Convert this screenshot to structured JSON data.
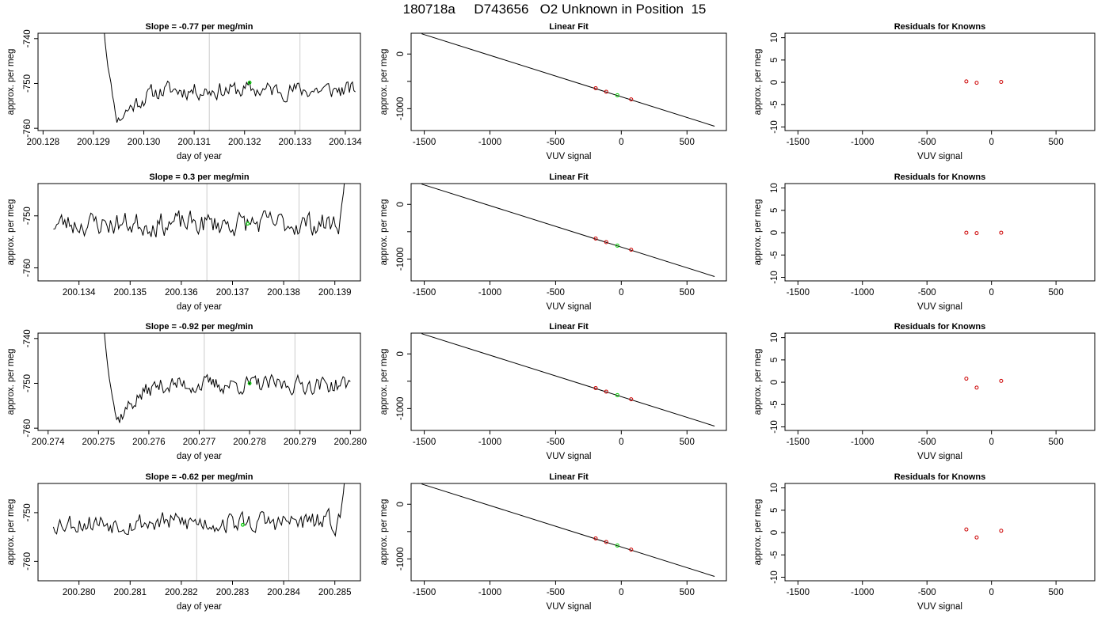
{
  "title": "180718a     D743656   O2 Unknown in Position  15",
  "chart_data": [
    {
      "type": "line",
      "title": "Slope =  -0.77  per meg/min",
      "xlabel": "day of year",
      "ylabel": "approx. per meg",
      "xlim": [
        200.1279,
        200.1343
      ],
      "ylim": [
        -760.5,
        -738.8
      ],
      "xticks": [
        {
          "v": 200.128,
          "label": "200.128"
        },
        {
          "v": 200.129,
          "label": "200.129"
        },
        {
          "v": 200.13,
          "label": "200.130"
        },
        {
          "v": 200.131,
          "label": "200.131"
        },
        {
          "v": 200.132,
          "label": "200.132"
        },
        {
          "v": 200.133,
          "label": "200.133"
        },
        {
          "v": 200.134,
          "label": "200.134"
        }
      ],
      "yticks": [
        {
          "v": -760,
          "label": "-760"
        },
        {
          "v": -750,
          "label": "-750"
        },
        {
          "v": -740,
          "label": "-740"
        }
      ],
      "vlines": [
        200.1313,
        200.1331
      ],
      "marker": {
        "x": 200.1321,
        "y": -749.8
      },
      "start": {
        "x": 200.1292,
        "y": -736
      },
      "range": [
        200.1292,
        200.1342
      ],
      "n": 170,
      "drop": {
        "len": 10,
        "to": -760
      },
      "base": -751.5,
      "rise": {
        "start": -758,
        "len": 35
      },
      "amp": 1.7,
      "seed": 11
    },
    {
      "type": "line",
      "title": "Slope =  0.3  per meg/min",
      "xlabel": "day of year",
      "ylabel": "approx. per meg",
      "xlim": [
        200.1332,
        200.1395
      ],
      "ylim": [
        -762.5,
        -743.8
      ],
      "xticks": [
        {
          "v": 200.134,
          "label": "200.134"
        },
        {
          "v": 200.135,
          "label": "200.135"
        },
        {
          "v": 200.136,
          "label": "200.136"
        },
        {
          "v": 200.137,
          "label": "200.137"
        },
        {
          "v": 200.138,
          "label": "200.138"
        },
        {
          "v": 200.139,
          "label": "200.139"
        }
      ],
      "yticks": [
        {
          "v": -760,
          "label": "-760"
        },
        {
          "v": -750,
          "label": "-750"
        }
      ],
      "vlines": [
        200.1365,
        200.1383
      ],
      "marker": {
        "x": 200.1373,
        "y": -751.5
      },
      "start": {
        "x": 200.1335,
        "y": -750
      },
      "range": [
        200.1335,
        200.1392
      ],
      "n": 180,
      "base": -751.5,
      "amp": 2.0,
      "seed": 23,
      "endRise": {
        "len": 5,
        "to": -742
      }
    },
    {
      "type": "line",
      "title": "Slope =  -0.92  per meg/min",
      "xlabel": "day of year",
      "ylabel": "approx. per meg",
      "xlim": [
        200.2738,
        200.2802
      ],
      "ylim": [
        -760.5,
        -738.8
      ],
      "xticks": [
        {
          "v": 200.274,
          "label": "200.274"
        },
        {
          "v": 200.275,
          "label": "200.275"
        },
        {
          "v": 200.276,
          "label": "200.276"
        },
        {
          "v": 200.277,
          "label": "200.277"
        },
        {
          "v": 200.278,
          "label": "200.278"
        },
        {
          "v": 200.279,
          "label": "200.279"
        },
        {
          "v": 200.28,
          "label": "200.280"
        }
      ],
      "yticks": [
        {
          "v": -760,
          "label": "-760"
        },
        {
          "v": -750,
          "label": "-750"
        },
        {
          "v": -740,
          "label": "-740"
        }
      ],
      "vlines": [
        200.2771,
        200.2789
      ],
      "marker": {
        "x": 200.278,
        "y": -750
      },
      "start": {
        "x": 200.2751,
        "y": -736
      },
      "range": [
        200.2751,
        200.28
      ],
      "n": 170,
      "drop": {
        "len": 10,
        "to": -760
      },
      "base": -750.3,
      "rise": {
        "start": -758,
        "len": 35
      },
      "amp": 1.7,
      "seed": 37
    },
    {
      "type": "line",
      "title": "Slope =  -0.62  per meg/min",
      "xlabel": "day of year",
      "ylabel": "approx. per meg",
      "xlim": [
        200.2792,
        200.2855
      ],
      "ylim": [
        -764,
        -744
      ],
      "xticks": [
        {
          "v": 200.28,
          "label": "200.280"
        },
        {
          "v": 200.281,
          "label": "200.281"
        },
        {
          "v": 200.282,
          "label": "200.282"
        },
        {
          "v": 200.283,
          "label": "200.283"
        },
        {
          "v": 200.284,
          "label": "200.284"
        },
        {
          "v": 200.285,
          "label": "200.285"
        }
      ],
      "yticks": [
        {
          "v": -760,
          "label": "-760"
        },
        {
          "v": -750,
          "label": "-750"
        }
      ],
      "vlines": [
        200.2823,
        200.2841
      ],
      "marker": {
        "x": 200.2832,
        "y": -752.5
      },
      "start": {
        "x": 200.2795,
        "y": -751
      },
      "range": [
        200.2795,
        200.2852
      ],
      "n": 180,
      "base": -752,
      "amp": 1.9,
      "seed": 53,
      "endRise": {
        "len": 5,
        "to": -742
      }
    },
    {
      "type": "line",
      "title": "Linear Fit",
      "xlabel": "VUV signal",
      "ylabel": "approx. per meg",
      "xlim": [
        -1600,
        800
      ],
      "ylim": [
        -1400,
        380
      ],
      "xticks": [
        {
          "v": -1500,
          "label": "-1500"
        },
        {
          "v": -1000,
          "label": "-1000"
        },
        {
          "v": -500,
          "label": "-500"
        },
        {
          "v": 0,
          "label": "0"
        },
        {
          "v": 500,
          "label": "500"
        }
      ],
      "yticks": [
        {
          "v": -1000,
          "label": "-1000"
        },
        {
          "v": -500,
          "label": ""
        },
        {
          "v": 0,
          "label": "0"
        }
      ],
      "fit_line": {
        "x": [
          -1520,
          710
        ],
        "y": [
          370,
          -1320
        ]
      },
      "knowns": {
        "x": [
          -195,
          -115,
          75
        ],
        "y": [
          -625,
          -690,
          -830
        ]
      },
      "unknown": {
        "x": -30,
        "y": -755
      }
    },
    {
      "type": "line",
      "title": "Linear Fit",
      "xlabel": "VUV signal",
      "ylabel": "approx. per meg",
      "xlim": [
        -1600,
        800
      ],
      "ylim": [
        -1400,
        380
      ],
      "xticks": [
        {
          "v": -1500,
          "label": "-1500"
        },
        {
          "v": -1000,
          "label": "-1000"
        },
        {
          "v": -500,
          "label": "-500"
        },
        {
          "v": 0,
          "label": "0"
        },
        {
          "v": 500,
          "label": "500"
        }
      ],
      "yticks": [
        {
          "v": -1000,
          "label": "-1000"
        },
        {
          "v": -500,
          "label": ""
        },
        {
          "v": 0,
          "label": "0"
        }
      ],
      "fit_line": {
        "x": [
          -1520,
          710
        ],
        "y": [
          370,
          -1320
        ]
      },
      "knowns": {
        "x": [
          -195,
          -115,
          75
        ],
        "y": [
          -625,
          -690,
          -830
        ]
      },
      "unknown": {
        "x": -30,
        "y": -755
      }
    },
    {
      "type": "line",
      "title": "Linear Fit",
      "xlabel": "VUV signal",
      "ylabel": "approx. per meg",
      "xlim": [
        -1600,
        800
      ],
      "ylim": [
        -1400,
        380
      ],
      "xticks": [
        {
          "v": -1500,
          "label": "-1500"
        },
        {
          "v": -1000,
          "label": "-1000"
        },
        {
          "v": -500,
          "label": "-500"
        },
        {
          "v": 0,
          "label": "0"
        },
        {
          "v": 500,
          "label": "500"
        }
      ],
      "yticks": [
        {
          "v": -1000,
          "label": "-1000"
        },
        {
          "v": -500,
          "label": ""
        },
        {
          "v": 0,
          "label": "0"
        }
      ],
      "fit_line": {
        "x": [
          -1520,
          710
        ],
        "y": [
          370,
          -1320
        ]
      },
      "knowns": {
        "x": [
          -195,
          -115,
          75
        ],
        "y": [
          -625,
          -690,
          -830
        ]
      },
      "unknown": {
        "x": -30,
        "y": -755
      }
    },
    {
      "type": "line",
      "title": "Linear Fit",
      "xlabel": "VUV signal",
      "ylabel": "approx. per meg",
      "xlim": [
        -1600,
        800
      ],
      "ylim": [
        -1400,
        380
      ],
      "xticks": [
        {
          "v": -1500,
          "label": "-1500"
        },
        {
          "v": -1000,
          "label": "-1000"
        },
        {
          "v": -500,
          "label": "-500"
        },
        {
          "v": 0,
          "label": "0"
        },
        {
          "v": 500,
          "label": "500"
        }
      ],
      "yticks": [
        {
          "v": -1000,
          "label": "-1000"
        },
        {
          "v": -500,
          "label": ""
        },
        {
          "v": 0,
          "label": "0"
        }
      ],
      "fit_line": {
        "x": [
          -1520,
          710
        ],
        "y": [
          370,
          -1320
        ]
      },
      "knowns": {
        "x": [
          -195,
          -115,
          75
        ],
        "y": [
          -625,
          -690,
          -830
        ]
      },
      "unknown": {
        "x": -30,
        "y": -755
      }
    },
    {
      "type": "scatter",
      "title": "Residuals for Knowns",
      "xlabel": "VUV signal",
      "ylabel": "approx. per meg",
      "xlim": [
        -1600,
        800
      ],
      "ylim": [
        -10.8,
        11
      ],
      "xticks": [
        {
          "v": -1500,
          "label": "-1500"
        },
        {
          "v": -1000,
          "label": "-1000"
        },
        {
          "v": -500,
          "label": "-500"
        },
        {
          "v": 0,
          "label": "0"
        },
        {
          "v": 500,
          "label": "500"
        }
      ],
      "yticks": [
        {
          "v": -10,
          "label": "-10"
        },
        {
          "v": -5,
          "label": "-5"
        },
        {
          "v": 0,
          "label": "0"
        },
        {
          "v": 5,
          "label": "5"
        },
        {
          "v": 10,
          "label": "10"
        }
      ],
      "points": {
        "x": [
          -195,
          -115,
          75
        ],
        "y": [
          0.2,
          -0.1,
          0.1
        ]
      }
    },
    {
      "type": "scatter",
      "title": "Residuals for Knowns",
      "xlabel": "VUV signal",
      "ylabel": "approx. per meg",
      "xlim": [
        -1600,
        800
      ],
      "ylim": [
        -10.8,
        11
      ],
      "xticks": [
        {
          "v": -1500,
          "label": "-1500"
        },
        {
          "v": -1000,
          "label": "-1000"
        },
        {
          "v": -500,
          "label": "-500"
        },
        {
          "v": 0,
          "label": "0"
        },
        {
          "v": 500,
          "label": "500"
        }
      ],
      "yticks": [
        {
          "v": -10,
          "label": "-10"
        },
        {
          "v": -5,
          "label": "-5"
        },
        {
          "v": 0,
          "label": "0"
        },
        {
          "v": 5,
          "label": "5"
        },
        {
          "v": 10,
          "label": "10"
        }
      ],
      "points": {
        "x": [
          -195,
          -115,
          75
        ],
        "y": [
          0.0,
          -0.1,
          0.0
        ]
      }
    },
    {
      "type": "scatter",
      "title": "Residuals for Knowns",
      "xlabel": "VUV signal",
      "ylabel": "approx. per meg",
      "xlim": [
        -1600,
        800
      ],
      "ylim": [
        -10.8,
        11
      ],
      "xticks": [
        {
          "v": -1500,
          "label": "-1500"
        },
        {
          "v": -1000,
          "label": "-1000"
        },
        {
          "v": -500,
          "label": "-500"
        },
        {
          "v": 0,
          "label": "0"
        },
        {
          "v": 500,
          "label": "500"
        }
      ],
      "yticks": [
        {
          "v": -10,
          "label": "-10"
        },
        {
          "v": -5,
          "label": "-5"
        },
        {
          "v": 0,
          "label": "0"
        },
        {
          "v": 5,
          "label": "5"
        },
        {
          "v": 10,
          "label": "10"
        }
      ],
      "points": {
        "x": [
          -195,
          -115,
          75
        ],
        "y": [
          0.8,
          -1.2,
          0.3
        ]
      }
    },
    {
      "type": "scatter",
      "title": "Residuals for Knowns",
      "xlabel": "VUV signal",
      "ylabel": "approx. per meg",
      "xlim": [
        -1600,
        800
      ],
      "ylim": [
        -10.8,
        11
      ],
      "xticks": [
        {
          "v": -1500,
          "label": "-1500"
        },
        {
          "v": -1000,
          "label": "-1000"
        },
        {
          "v": -500,
          "label": "-500"
        },
        {
          "v": 0,
          "label": "0"
        },
        {
          "v": 500,
          "label": "500"
        }
      ],
      "yticks": [
        {
          "v": -10,
          "label": "-10"
        },
        {
          "v": -5,
          "label": "-5"
        },
        {
          "v": 0,
          "label": "0"
        },
        {
          "v": 5,
          "label": "5"
        },
        {
          "v": 10,
          "label": "10"
        }
      ],
      "points": {
        "x": [
          -195,
          -115,
          75
        ],
        "y": [
          0.7,
          -1.1,
          0.4
        ]
      }
    }
  ],
  "colors": {
    "line": "#000000",
    "vline": "#cccccc",
    "unknown_marker": "#00cc00",
    "known_marker": "#cc0000"
  }
}
